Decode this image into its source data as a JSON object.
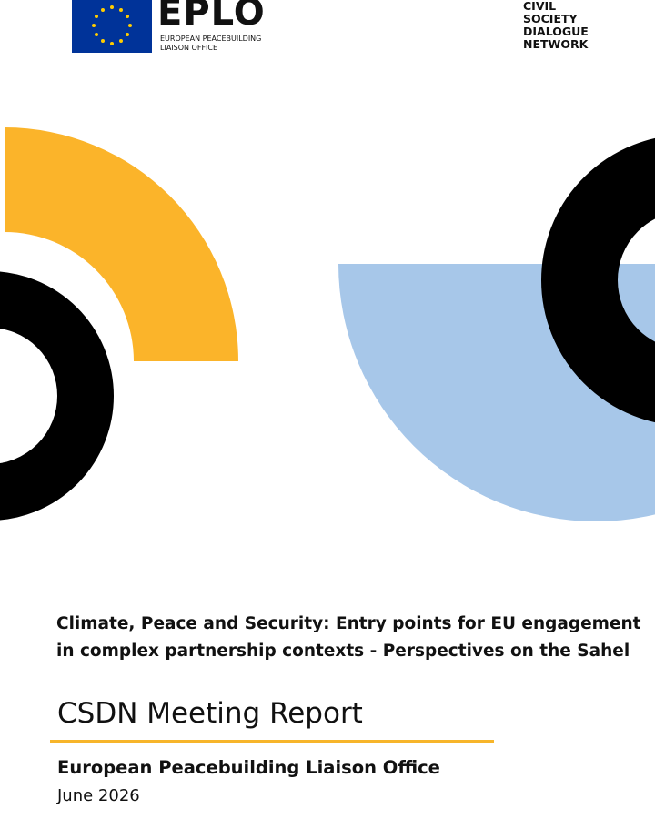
{
  "logos": {
    "eplo": {
      "name": "EPLO",
      "subtitle": [
        "EUROPEAN PEACEBUILDING",
        "LIAISON OFFICE"
      ]
    },
    "csdn": [
      "CIVIL",
      "SOCIETY",
      "DIALOGUE",
      "NETWORK"
    ]
  },
  "cover": {
    "title": [
      "Climate, Peace and Security: Entry points for EU engagement",
      "in complex partnership contexts - Perspectives on the Sahel"
    ],
    "report_type": "CSDN Meeting Report",
    "author": "European Peacebuilding Liaison Office",
    "date": "June 2026"
  }
}
